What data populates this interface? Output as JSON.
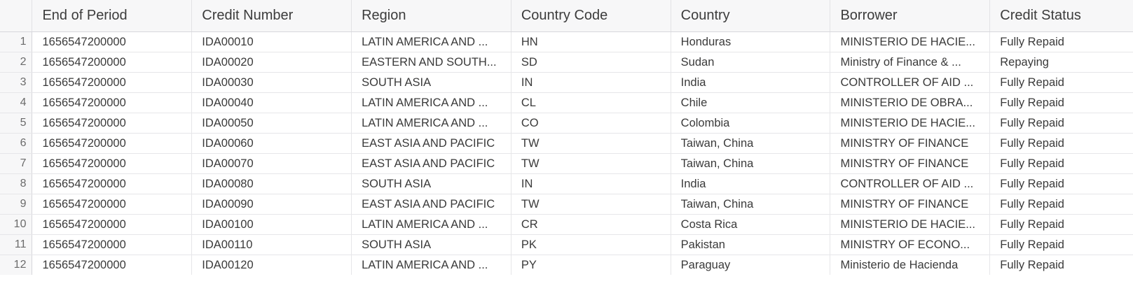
{
  "columns": [
    "End of Period",
    "Credit Number",
    "Region",
    "Country Code",
    "Country",
    "Borrower",
    "Credit Status"
  ],
  "rows": [
    {
      "n": "1",
      "cells": [
        "1656547200000",
        "IDA00010",
        "LATIN AMERICA AND ...",
        "HN",
        "Honduras",
        "MINISTERIO DE HACIE...",
        "Fully Repaid"
      ]
    },
    {
      "n": "2",
      "cells": [
        "1656547200000",
        "IDA00020",
        "EASTERN AND SOUTH...",
        "SD",
        "Sudan",
        "Ministry of Finance & ...",
        "Repaying"
      ]
    },
    {
      "n": "3",
      "cells": [
        "1656547200000",
        "IDA00030",
        "SOUTH ASIA",
        "IN",
        "India",
        "CONTROLLER OF AID ...",
        "Fully Repaid"
      ]
    },
    {
      "n": "4",
      "cells": [
        "1656547200000",
        "IDA00040",
        "LATIN AMERICA AND ...",
        "CL",
        "Chile",
        "MINISTERIO DE OBRA...",
        "Fully Repaid"
      ]
    },
    {
      "n": "5",
      "cells": [
        "1656547200000",
        "IDA00050",
        "LATIN AMERICA AND ...",
        "CO",
        "Colombia",
        "MINISTERIO DE HACIE...",
        "Fully Repaid"
      ]
    },
    {
      "n": "6",
      "cells": [
        "1656547200000",
        "IDA00060",
        "EAST ASIA AND PACIFIC",
        "TW",
        "Taiwan, China",
        "MINISTRY OF FINANCE",
        "Fully Repaid"
      ]
    },
    {
      "n": "7",
      "cells": [
        "1656547200000",
        "IDA00070",
        "EAST ASIA AND PACIFIC",
        "TW",
        "Taiwan, China",
        "MINISTRY OF FINANCE",
        "Fully Repaid"
      ]
    },
    {
      "n": "8",
      "cells": [
        "1656547200000",
        "IDA00080",
        "SOUTH ASIA",
        "IN",
        "India",
        "CONTROLLER OF AID ...",
        "Fully Repaid"
      ]
    },
    {
      "n": "9",
      "cells": [
        "1656547200000",
        "IDA00090",
        "EAST ASIA AND PACIFIC",
        "TW",
        "Taiwan, China",
        "MINISTRY OF FINANCE",
        "Fully Repaid"
      ]
    },
    {
      "n": "10",
      "cells": [
        "1656547200000",
        "IDA00100",
        "LATIN AMERICA AND ...",
        "CR",
        "Costa Rica",
        "MINISTERIO DE HACIE...",
        "Fully Repaid"
      ]
    },
    {
      "n": "11",
      "cells": [
        "1656547200000",
        "IDA00110",
        "SOUTH ASIA",
        "PK",
        "Pakistan",
        "MINISTRY OF ECONO...",
        "Fully Repaid"
      ]
    },
    {
      "n": "12",
      "cells": [
        "1656547200000",
        "IDA00120",
        "LATIN AMERICA AND ...",
        "PY",
        "Paraguay",
        "Ministerio de Hacienda",
        "Fully Repaid"
      ]
    }
  ]
}
